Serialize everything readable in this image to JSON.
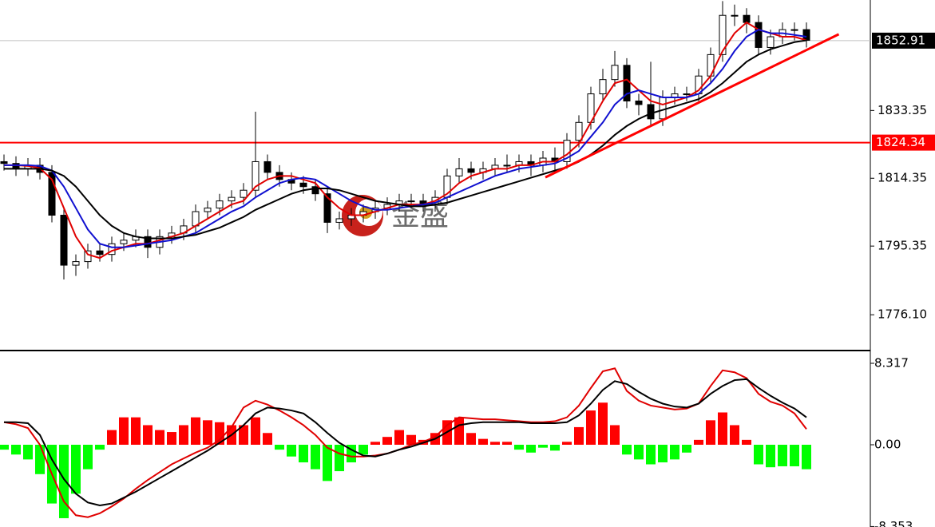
{
  "chart_data": [
    {
      "type": "candlestick",
      "open": [
        1819,
        1818.5,
        1817,
        1818,
        1816,
        1804,
        1790,
        1791,
        1794,
        1793,
        1796,
        1797,
        1798,
        1795,
        1798,
        1799,
        1801,
        1805,
        1806,
        1808,
        1809,
        1811,
        1819,
        1816,
        1814,
        1813,
        1812,
        1810,
        1802,
        1803,
        1804,
        1805,
        1806,
        1807,
        1808,
        1808,
        1807,
        1809,
        1815,
        1817,
        1816,
        1817,
        1818,
        1818,
        1819,
        1818,
        1820,
        1819,
        1825,
        1830,
        1838,
        1842,
        1846,
        1836,
        1835,
        1831,
        1837,
        1838,
        1838,
        1843,
        1849,
        1860,
        1860,
        1858,
        1851,
        1854,
        1856,
        1856
      ],
      "high": [
        1821,
        1820.5,
        1820,
        1820,
        1818,
        1806,
        1793,
        1796,
        1796,
        1798,
        1799,
        1800,
        1800,
        1800,
        1801,
        1803,
        1807,
        1808,
        1810,
        1811,
        1813,
        1833,
        1821,
        1818,
        1816,
        1815,
        1814,
        1812,
        1805,
        1806,
        1807,
        1808,
        1809,
        1810,
        1810,
        1810,
        1811,
        1817,
        1820,
        1819,
        1819,
        1820,
        1821,
        1821,
        1821,
        1822,
        1823,
        1827,
        1832,
        1840,
        1845,
        1850,
        1848,
        1838,
        1847,
        1839,
        1840,
        1840,
        1845,
        1851,
        1864,
        1863,
        1862,
        1860,
        1856,
        1858,
        1858,
        1858
      ],
      "low": [
        1816.5,
        1815,
        1815,
        1814,
        1802,
        1786,
        1787,
        1789,
        1791,
        1791,
        1794,
        1795,
        1792,
        1793,
        1796,
        1797,
        1799,
        1803,
        1804,
        1806,
        1807,
        1809,
        1814,
        1812,
        1811,
        1810,
        1808,
        1799,
        1800,
        1801,
        1802,
        1803,
        1804,
        1805,
        1806,
        1805,
        1805,
        1807,
        1813,
        1814,
        1814,
        1815,
        1816,
        1816,
        1815,
        1816,
        1816,
        1817,
        1823,
        1828,
        1836,
        1840,
        1834,
        1832,
        1829,
        1829,
        1835,
        1836,
        1836,
        1841,
        1847,
        1857,
        1855,
        1849,
        1849,
        1852,
        1853,
        1851
      ],
      "close": [
        1818.5,
        1817,
        1818,
        1816,
        1804,
        1790,
        1791,
        1794,
        1793,
        1796,
        1797,
        1798,
        1795,
        1798,
        1799,
        1801,
        1805,
        1806,
        1808,
        1809,
        1811,
        1819,
        1816,
        1814,
        1813,
        1812,
        1810,
        1802,
        1803,
        1804,
        1805,
        1806,
        1807,
        1808,
        1808,
        1807,
        1809,
        1815,
        1817,
        1816,
        1817,
        1818,
        1818,
        1819,
        1818,
        1820,
        1819,
        1825,
        1830,
        1838,
        1842,
        1846,
        1836,
        1835,
        1831,
        1837,
        1838,
        1838,
        1843,
        1849,
        1860,
        1860,
        1858,
        1851,
        1854,
        1856,
        1856,
        1853
      ],
      "series": [
        {
          "color": "#e00000",
          "values": [
            1818,
            1818,
            1817.8,
            1817.2,
            1814,
            1806,
            1798,
            1793,
            1792,
            1794,
            1795,
            1796,
            1796,
            1797,
            1798,
            1799,
            1801,
            1803,
            1805,
            1807,
            1808,
            1812,
            1814,
            1815,
            1815,
            1814,
            1813,
            1809,
            1806,
            1804,
            1804,
            1805,
            1806,
            1807,
            1807,
            1807,
            1808,
            1810,
            1813,
            1815,
            1816,
            1817,
            1817,
            1818,
            1818,
            1819,
            1819,
            1821,
            1824,
            1830,
            1836,
            1841,
            1842,
            1839,
            1836,
            1835,
            1836,
            1837,
            1839,
            1843,
            1850,
            1855,
            1858,
            1856,
            1855,
            1854,
            1854,
            1853
          ]
        },
        {
          "color": "#1010d0",
          "values": [
            1818,
            1818,
            1818,
            1817.8,
            1816.5,
            1812,
            1806,
            1800,
            1796,
            1795,
            1795,
            1795.5,
            1796,
            1796.5,
            1797,
            1798,
            1799,
            1801,
            1803,
            1805,
            1806.5,
            1809,
            1811,
            1813,
            1814,
            1814.5,
            1814,
            1812,
            1810,
            1808,
            1806.5,
            1805.5,
            1805.5,
            1806,
            1806.5,
            1807,
            1807.5,
            1809,
            1810.5,
            1812,
            1813.5,
            1815,
            1816,
            1817,
            1817.5,
            1818,
            1818.5,
            1820,
            1822,
            1826,
            1830,
            1835,
            1838,
            1839,
            1838,
            1837,
            1837,
            1837,
            1838,
            1841,
            1845,
            1850,
            1854,
            1856,
            1855,
            1855,
            1854.5,
            1854
          ]
        },
        {
          "color": "#000000",
          "values": [
            1817,
            1817,
            1817,
            1817,
            1816.5,
            1815,
            1812,
            1808,
            1804,
            1801,
            1799,
            1798,
            1797.5,
            1797.5,
            1797.5,
            1798,
            1798.5,
            1799.5,
            1800.5,
            1802,
            1803.5,
            1805.5,
            1807,
            1808.5,
            1810,
            1811,
            1811.5,
            1811.5,
            1811,
            1810,
            1809,
            1808,
            1807.5,
            1807,
            1806.5,
            1806.5,
            1807,
            1807.5,
            1808.5,
            1809.5,
            1810.5,
            1811.5,
            1812.5,
            1813.5,
            1814.5,
            1815.5,
            1816.5,
            1817.5,
            1819,
            1821,
            1823.5,
            1826.5,
            1829,
            1831,
            1832.5,
            1833.5,
            1834.5,
            1835.5,
            1836.5,
            1838.5,
            1841,
            1844,
            1847,
            1849,
            1850.5,
            1851.5,
            1852.5,
            1853
          ]
        }
      ],
      "ylim": [
        1766.3,
        1864.3
      ],
      "yticks": [
        1833.35,
        1814.35,
        1795.35,
        {
          "value": 1776.1,
          "label": "1776.10"
        }
      ],
      "price_line": {
        "value": 1852.91,
        "color": "#c0c0c0"
      },
      "level_line": {
        "value": 1824.34,
        "color": "#ff0000"
      },
      "trendline": {
        "x": [
          45.2,
          69.7
        ],
        "y": [
          1814.6,
          1854.7
        ],
        "color": "#ff0000"
      },
      "watermark": "金盛"
    },
    {
      "type": "macd",
      "values": [
        -0.5,
        -1,
        -1.5,
        -3,
        -6,
        -7.5,
        -5,
        -2.5,
        -0.5,
        1.5,
        2.8,
        2.8,
        2,
        1.5,
        1.3,
        2,
        2.8,
        2.5,
        2.3,
        2,
        2,
        2.8,
        1.2,
        -0.5,
        -1.2,
        -1.8,
        -2.5,
        -3.7,
        -2.7,
        -1.8,
        -1,
        0.3,
        0.8,
        1.5,
        1,
        0.5,
        1.2,
        2.5,
        2.8,
        1.2,
        0.6,
        0.3,
        0.3,
        -0.5,
        -0.8,
        -0.3,
        -0.6,
        0.3,
        1.8,
        3.5,
        4.3,
        2,
        -1,
        -1.5,
        -2,
        -1.8,
        -1.5,
        -0.8,
        0.5,
        2.5,
        3.3,
        2,
        0.5,
        -2,
        -2.3,
        -2.2,
        -2.2,
        -2.5
      ],
      "up_color": "#ff0000",
      "down_color": "#00ff00",
      "series": [
        {
          "color": "#e00000",
          "values": [
            2.3,
            2.1,
            1.7,
            0,
            -3,
            -5.8,
            -7.2,
            -7.4,
            -7,
            -6.3,
            -5.5,
            -4.5,
            -3.6,
            -2.8,
            -2,
            -1.4,
            -0.8,
            -0.3,
            0.5,
            1.8,
            3.8,
            4.5,
            4.1,
            3.5,
            2.8,
            2,
            1,
            -0.3,
            -0.9,
            -1.2,
            -1.2,
            -1.1,
            -0.9,
            -0.5,
            0,
            0.3,
            0.8,
            2,
            2.8,
            2.7,
            2.6,
            2.6,
            2.5,
            2.4,
            2.3,
            2.3,
            2.4,
            2.8,
            4,
            5.8,
            7.5,
            7.8,
            5.5,
            4.5,
            4,
            3.8,
            3.6,
            3.7,
            4.2,
            6,
            7.6,
            7.4,
            6.8,
            5.2,
            4.4,
            4,
            3.2,
            1.6
          ]
        },
        {
          "color": "#000000",
          "values": [
            2.3,
            2.3,
            2.2,
            1,
            -1.5,
            -3.5,
            -5,
            -5.9,
            -6.2,
            -6,
            -5.4,
            -4.8,
            -4.1,
            -3.4,
            -2.7,
            -2,
            -1.3,
            -0.6,
            0.2,
            1,
            2,
            3.2,
            3.8,
            3.7,
            3.5,
            3.2,
            2.3,
            1.2,
            0.2,
            -0.5,
            -1.1,
            -1.2,
            -0.9,
            -0.5,
            -0.2,
            0.2,
            0.6,
            1.3,
            2,
            2.2,
            2.3,
            2.3,
            2.3,
            2.3,
            2.2,
            2.2,
            2.2,
            2.3,
            3,
            4.2,
            5.6,
            6.5,
            6.2,
            5.4,
            4.7,
            4.2,
            3.9,
            3.8,
            4.2,
            5.2,
            6,
            6.6,
            6.7,
            5.8,
            5,
            4.3,
            3.7,
            2.8
          ]
        }
      ],
      "ylim": [
        -8.4,
        9.54
      ],
      "yticks": [
        8.317,
        {
          "value": 0,
          "label": "0.00"
        },
        -8.353
      ]
    }
  ]
}
